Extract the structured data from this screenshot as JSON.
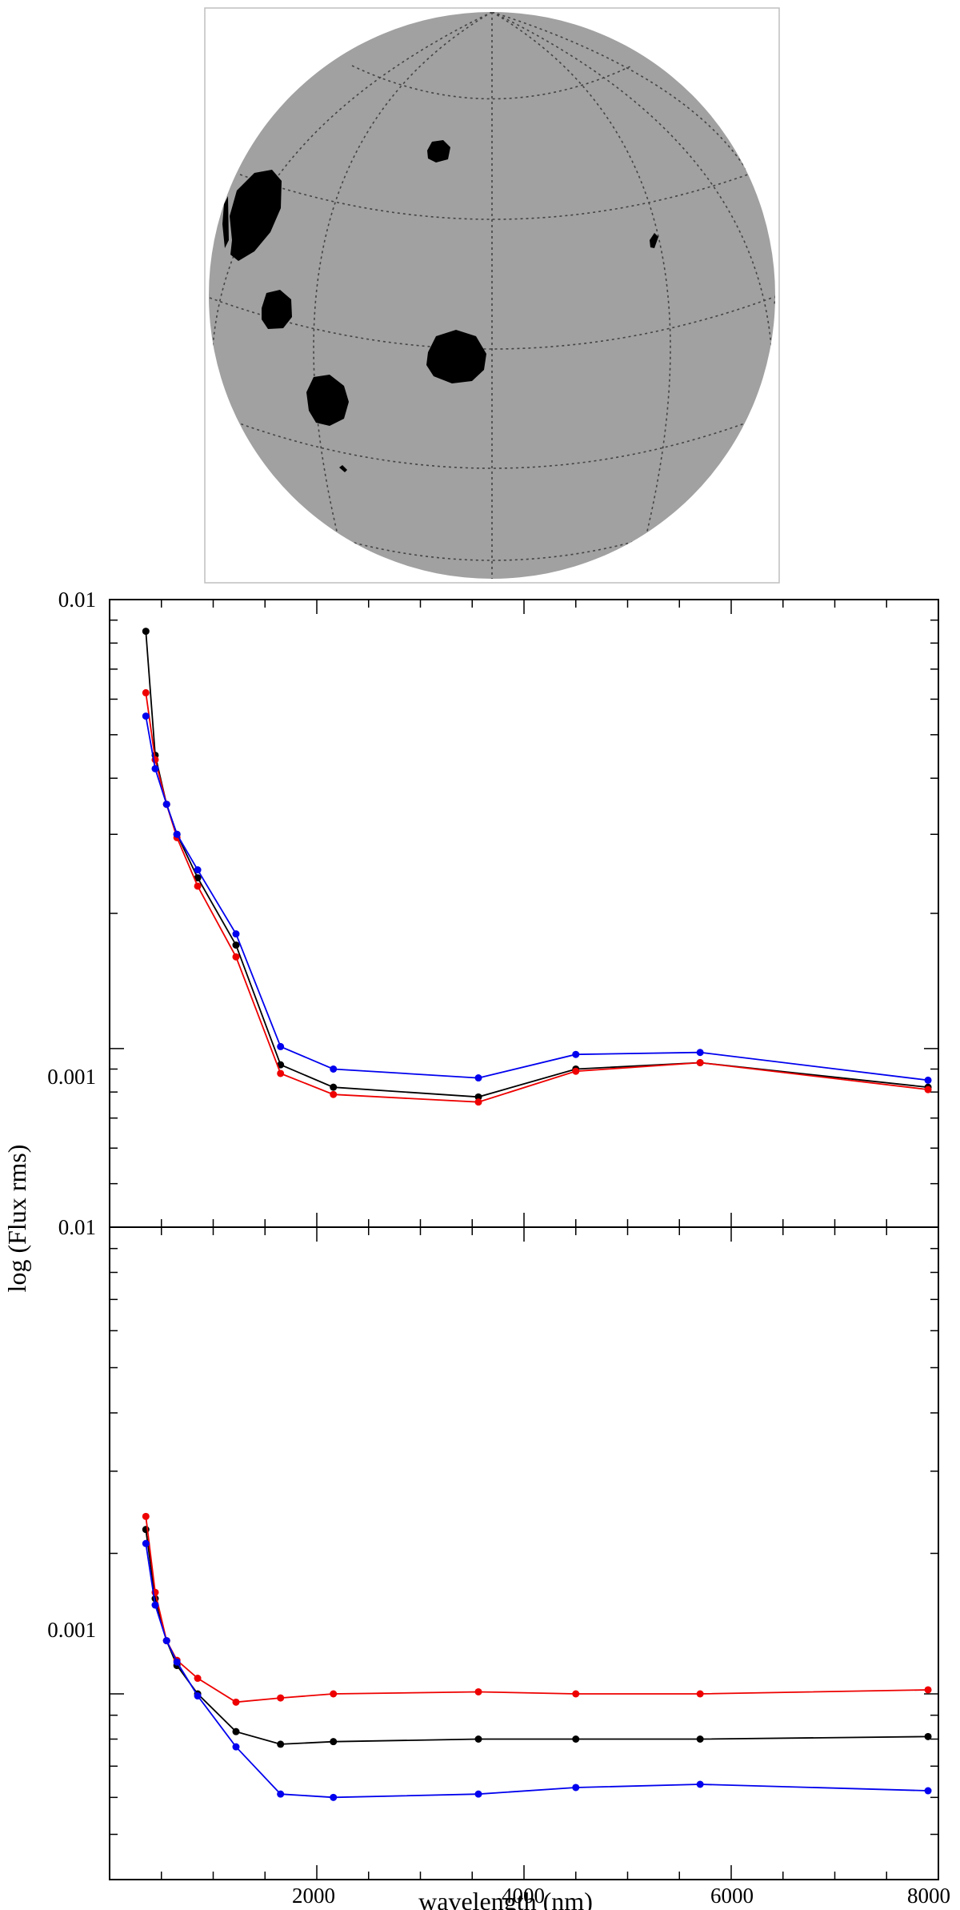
{
  "figure": {
    "ylabel": "log (Flux rms)",
    "xlabel": "wavelength (nm)"
  },
  "chart_data": [
    {
      "type": "line",
      "panel": "top",
      "y_scale": "log",
      "ylim": [
        0.0004,
        0.01
      ],
      "xlim": [
        0,
        8000
      ],
      "y_tick_labels": [
        "0.01",
        "0.001"
      ],
      "x_tick_labels": [],
      "grid": false,
      "legend": "none",
      "series": [
        {
          "color": "#000000",
          "x": [
            350,
            440,
            550,
            650,
            850,
            1220,
            1650,
            2160,
            3560,
            4500,
            5700,
            7900
          ],
          "y": [
            0.0085,
            0.0045,
            0.0035,
            0.003,
            0.0024,
            0.0017,
            0.00092,
            0.00082,
            0.00078,
            0.0009,
            0.00093,
            0.00082
          ]
        },
        {
          "color": "#ee0000",
          "x": [
            350,
            440,
            550,
            650,
            850,
            1220,
            1650,
            2160,
            3560,
            4500,
            5700,
            7900
          ],
          "y": [
            0.0062,
            0.0044,
            0.0035,
            0.00295,
            0.0023,
            0.0016,
            0.00088,
            0.00079,
            0.00076,
            0.00089,
            0.00093,
            0.00081
          ]
        },
        {
          "color": "#0000ee",
          "x": [
            350,
            440,
            550,
            650,
            850,
            1220,
            1650,
            2160,
            3560,
            4500,
            5700,
            7900
          ],
          "y": [
            0.0055,
            0.0042,
            0.0035,
            0.003,
            0.0025,
            0.0018,
            0.00101,
            0.0009,
            0.00086,
            0.00097,
            0.00098,
            0.00085
          ]
        }
      ]
    },
    {
      "type": "line",
      "panel": "bottom",
      "y_scale": "log",
      "ylim": [
        0.0004,
        0.01
      ],
      "xlim": [
        0,
        8000
      ],
      "y_tick_labels": [
        "0.01",
        "0.001"
      ],
      "x_tick_labels": [
        "2000",
        "4000",
        "6000",
        "8000"
      ],
      "grid": false,
      "legend": "none",
      "series": [
        {
          "color": "#000000",
          "x": [
            350,
            440,
            550,
            650,
            850,
            1220,
            1650,
            2160,
            3560,
            4500,
            5700,
            7900
          ],
          "y": [
            0.00225,
            0.0016,
            0.0013,
            0.00115,
            0.001,
            0.00083,
            0.00078,
            0.00079,
            0.0008,
            0.0008,
            0.0008,
            0.00081
          ]
        },
        {
          "color": "#ee0000",
          "x": [
            350,
            440,
            550,
            650,
            850,
            1220,
            1650,
            2160,
            3560,
            4500,
            5700,
            7900
          ],
          "y": [
            0.0024,
            0.00165,
            0.0013,
            0.00118,
            0.00108,
            0.00096,
            0.00098,
            0.001,
            0.00101,
            0.001,
            0.001,
            0.00102
          ]
        },
        {
          "color": "#0000ee",
          "x": [
            350,
            440,
            550,
            650,
            850,
            1220,
            1650,
            2160,
            3560,
            4500,
            5700,
            7900
          ],
          "y": [
            0.0021,
            0.00155,
            0.0013,
            0.00117,
            0.00099,
            0.00077,
            0.00061,
            0.0006,
            0.00061,
            0.00063,
            0.00064,
            0.00062
          ]
        }
      ]
    }
  ]
}
